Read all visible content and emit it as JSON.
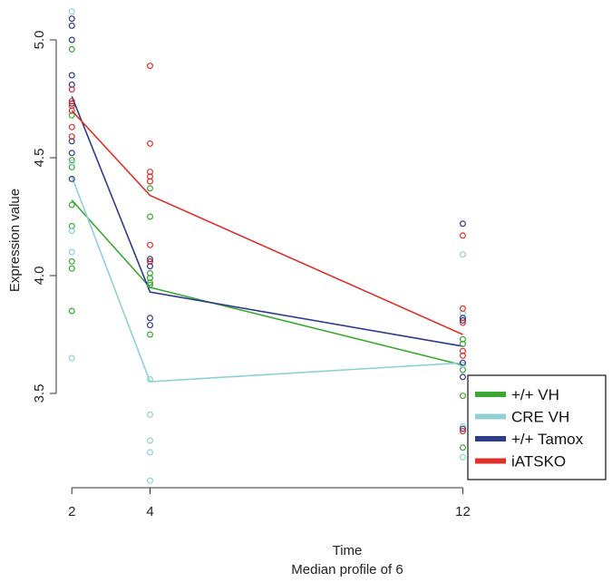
{
  "chart_data": {
    "type": "line",
    "title": "",
    "xlabel": "Time",
    "xlabel_sub": "Median profile of 6",
    "ylabel": "Expression value",
    "x_ticks": [
      2,
      4,
      12
    ],
    "y_ticks": [
      3.5,
      4.0,
      4.5,
      5.0
    ],
    "y_tick_labels": [
      "3.5",
      "4.0",
      "4.5",
      "5.0"
    ],
    "xlim": [
      1.6,
      15.7
    ],
    "ylim": [
      3.1,
      5.15
    ],
    "grid": false,
    "legend_position": "bottom-right",
    "series": [
      {
        "name": "+/+ VH",
        "color": "#3aa832",
        "x": [
          2,
          4,
          12
        ],
        "median": [
          4.32,
          3.95,
          3.62
        ],
        "points": [
          [
            2,
            4.96
          ],
          [
            2,
            4.68
          ],
          [
            2,
            4.49
          ],
          [
            2,
            4.46
          ],
          [
            2,
            4.3
          ],
          [
            2,
            4.21
          ],
          [
            2,
            4.06
          ],
          [
            2,
            4.03
          ],
          [
            2,
            3.85
          ],
          [
            4,
            4.37
          ],
          [
            4,
            4.25
          ],
          [
            4,
            4.01
          ],
          [
            4,
            3.99
          ],
          [
            4,
            3.97
          ],
          [
            4,
            3.96
          ],
          [
            4,
            3.75
          ],
          [
            12,
            3.73
          ],
          [
            12,
            3.71
          ],
          [
            12,
            3.6
          ],
          [
            12,
            3.49
          ],
          [
            12,
            3.27
          ]
        ]
      },
      {
        "name": "CRE VH",
        "color": "#8fd0d6",
        "x": [
          2,
          4,
          12
        ],
        "median": [
          4.42,
          3.55,
          3.63
        ],
        "points": [
          [
            2,
            5.12
          ],
          [
            2,
            4.48
          ],
          [
            2,
            4.19
          ],
          [
            2,
            4.1
          ],
          [
            2,
            3.65
          ],
          [
            4,
            3.56
          ],
          [
            4,
            3.41
          ],
          [
            4,
            3.3
          ],
          [
            4,
            3.25
          ],
          [
            4,
            3.13
          ],
          [
            12,
            4.09
          ],
          [
            12,
            3.84
          ],
          [
            12,
            3.62
          ],
          [
            12,
            3.36
          ],
          [
            12,
            3.23
          ]
        ]
      },
      {
        "name": "+/+ Tamox",
        "color": "#2e3a8c",
        "x": [
          2,
          4,
          12
        ],
        "median": [
          4.76,
          3.93,
          3.7
        ],
        "points": [
          [
            2,
            5.09
          ],
          [
            2,
            5.06
          ],
          [
            2,
            5.0
          ],
          [
            2,
            4.85
          ],
          [
            2,
            4.81
          ],
          [
            2,
            4.73
          ],
          [
            2,
            4.57
          ],
          [
            2,
            4.52
          ],
          [
            2,
            4.41
          ],
          [
            4,
            4.07
          ],
          [
            4,
            4.06
          ],
          [
            4,
            4.04
          ],
          [
            4,
            3.82
          ],
          [
            4,
            3.79
          ],
          [
            12,
            4.22
          ],
          [
            12,
            3.82
          ],
          [
            12,
            3.81
          ],
          [
            12,
            3.63
          ],
          [
            12,
            3.57
          ],
          [
            12,
            3.35
          ]
        ]
      },
      {
        "name": "iATSKO",
        "color": "#e0302a",
        "x": [
          2,
          4,
          12
        ],
        "median": [
          4.7,
          4.34,
          3.75
        ],
        "points": [
          [
            2,
            4.79
          ],
          [
            2,
            4.74
          ],
          [
            2,
            4.72
          ],
          [
            2,
            4.7
          ],
          [
            2,
            4.63
          ],
          [
            2,
            4.59
          ],
          [
            4,
            4.89
          ],
          [
            4,
            4.56
          ],
          [
            4,
            4.44
          ],
          [
            4,
            4.42
          ],
          [
            4,
            4.4
          ],
          [
            4,
            4.13
          ],
          [
            4,
            4.06
          ],
          [
            12,
            4.17
          ],
          [
            12,
            3.86
          ],
          [
            12,
            3.8
          ],
          [
            12,
            3.68
          ],
          [
            12,
            3.66
          ],
          [
            12,
            3.34
          ]
        ]
      }
    ]
  }
}
